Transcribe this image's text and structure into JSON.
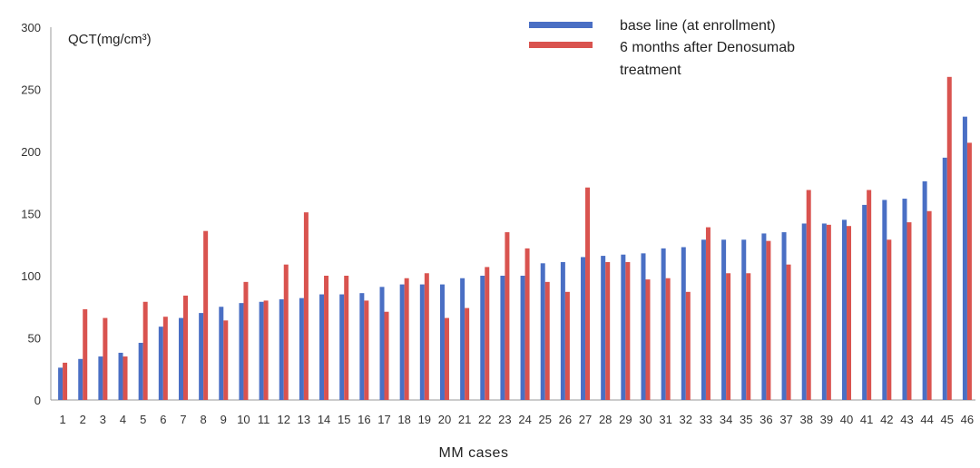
{
  "chart_data": {
    "type": "bar",
    "ylabel": "QCT(mg/cm³)",
    "xlabel": "MM  cases",
    "ylim": [
      0,
      300
    ],
    "yticks": [
      0,
      50,
      100,
      150,
      200,
      250,
      300
    ],
    "grid": false,
    "legend_position": "top-right",
    "categories": [
      "1",
      "2",
      "3",
      "4",
      "5",
      "6",
      "7",
      "8",
      "9",
      "10",
      "11",
      "12",
      "13",
      "14",
      "15",
      "16",
      "17",
      "18",
      "19",
      "20",
      "21",
      "22",
      "23",
      "24",
      "25",
      "26",
      "27",
      "28",
      "29",
      "30",
      "31",
      "32",
      "33",
      "34",
      "35",
      "36",
      "37",
      "38",
      "39",
      "40",
      "41",
      "42",
      "43",
      "44",
      "45",
      "46"
    ],
    "series": [
      {
        "name": "base line (at enrollment)",
        "color": "#4a6fc4",
        "values": [
          26,
          33,
          35,
          38,
          46,
          59,
          66,
          70,
          75,
          78,
          79,
          81,
          82,
          85,
          85,
          86,
          91,
          93,
          93,
          93,
          98,
          100,
          100,
          100,
          110,
          111,
          115,
          116,
          117,
          118,
          122,
          123,
          129,
          129,
          129,
          134,
          135,
          142,
          142,
          145,
          157,
          161,
          162,
          176,
          195,
          228
        ]
      },
      {
        "name": "6 months after Denosumab treatment",
        "color": "#d9534f",
        "values": [
          30,
          73,
          66,
          35,
          79,
          67,
          84,
          136,
          64,
          95,
          80,
          109,
          151,
          100,
          100,
          80,
          71,
          98,
          102,
          66,
          74,
          107,
          135,
          122,
          95,
          87,
          171,
          111,
          111,
          97,
          98,
          87,
          139,
          102,
          102,
          128,
          109,
          169,
          141,
          140,
          169,
          129,
          143,
          152,
          260,
          207
        ]
      }
    ]
  },
  "legend": {
    "items": [
      {
        "line1": "base line (at enrollment)",
        "line2": "",
        "color": "#4a6fc4"
      },
      {
        "line1": "6 months after Denosumab",
        "line2": "treatment",
        "color": "#d9534f"
      }
    ]
  }
}
